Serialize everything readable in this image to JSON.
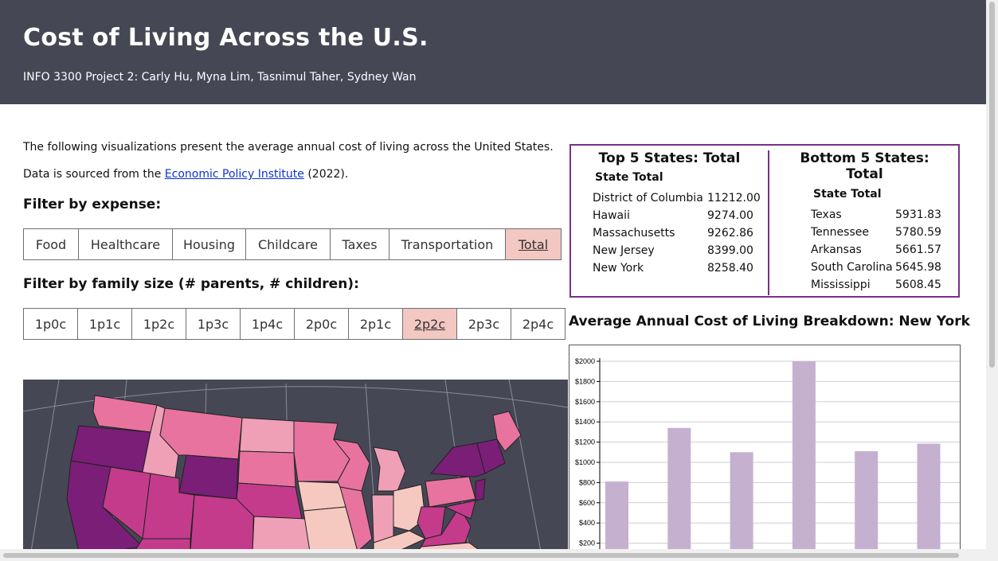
{
  "header": {
    "title": "Cost of Living Across the U.S.",
    "subtitle": "INFO 3300 Project 2: Carly Hu, Myna Lim, Tasnimul Taher, Sydney Wan"
  },
  "intro": {
    "line1": "The following visualizations present the average annual cost of living across the United States.",
    "line2_prefix": "Data is sourced from the ",
    "line2_link": "Economic Policy Institute",
    "line2_suffix": " (2022)."
  },
  "expense_filter": {
    "heading": "Filter by expense:",
    "buttons": [
      "Food",
      "Healthcare",
      "Housing",
      "Childcare",
      "Taxes",
      "Transportation",
      "Total"
    ],
    "selected": "Total"
  },
  "family_filter": {
    "heading": "Filter by family size (# parents, # children):",
    "buttons": [
      "1p0c",
      "1p1c",
      "1p2c",
      "1p3c",
      "1p4c",
      "2p0c",
      "2p1c",
      "2p2c",
      "2p3c",
      "2p4c"
    ],
    "selected": "2p2c"
  },
  "top_table": {
    "title": "Top 5 States: Total",
    "col_state": "State",
    "col_total": "Total",
    "rows": [
      {
        "state": "District of Columbia",
        "total": "11212.00"
      },
      {
        "state": "Hawaii",
        "total": "9274.00"
      },
      {
        "state": "Massachusetts",
        "total": "9262.86"
      },
      {
        "state": "New Jersey",
        "total": "8399.00"
      },
      {
        "state": "New York",
        "total": "8258.40"
      }
    ]
  },
  "bottom_table": {
    "title_line1": "Bottom 5 States:",
    "title_line2": "Total",
    "col_state": "State",
    "col_total": "Total",
    "rows": [
      {
        "state": "Texas",
        "total": "5931.83"
      },
      {
        "state": "Tennessee",
        "total": "5780.59"
      },
      {
        "state": "Arkansas",
        "total": "5661.57"
      },
      {
        "state": "South Carolina",
        "total": "5645.98"
      },
      {
        "state": "Mississippi",
        "total": "5608.45"
      }
    ]
  },
  "chart_data": {
    "type": "bar",
    "title": "Average Annual Cost of Living Breakdown: New York",
    "ylabel": "",
    "xlabel": "",
    "ylim": [
      0,
      2000
    ],
    "yticks": [
      "$200",
      "$400",
      "$600",
      "$800",
      "$1000",
      "$1200",
      "$1400",
      "$1600",
      "$1800",
      "$2000"
    ],
    "values": [
      810,
      1340,
      1100,
      2000,
      1110,
      1185
    ],
    "bar_color": "#c6b0d0",
    "grid": true
  },
  "colors": {
    "header_bg": "#464754",
    "active_button": "#f3c7c2",
    "table_border": "#7a2f8a"
  }
}
